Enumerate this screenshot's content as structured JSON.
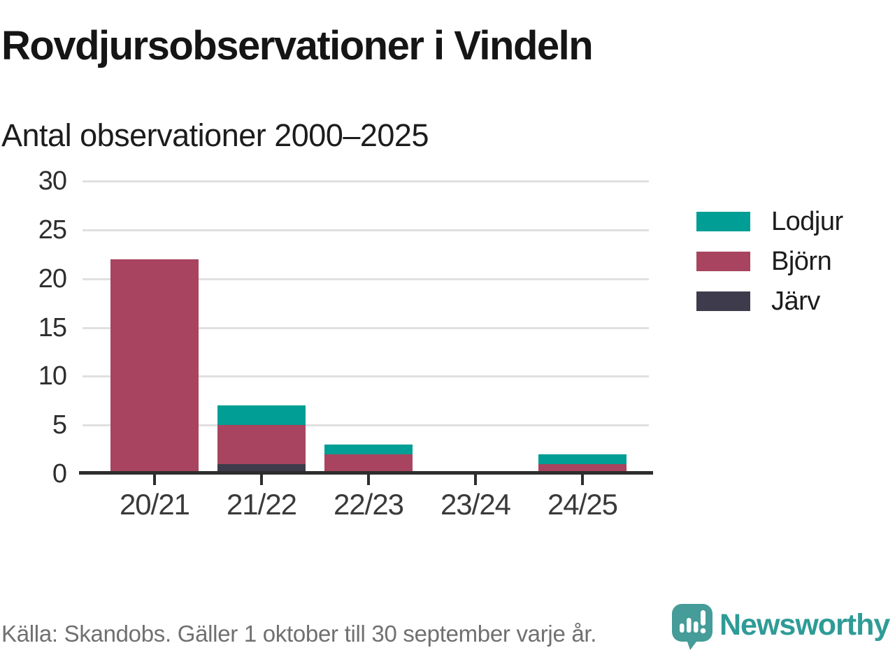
{
  "header": {
    "title": "Rovdjursobservationer i Vindeln",
    "subtitle": "Antal observationer 2000–2025"
  },
  "chart_data": {
    "type": "bar",
    "stacked": true,
    "categories": [
      "20/21",
      "21/22",
      "22/23",
      "23/24",
      "24/25"
    ],
    "series": [
      {
        "name": "Lodjur",
        "color": "#009e94",
        "values": [
          0,
          2,
          1,
          0,
          1
        ]
      },
      {
        "name": "Björn",
        "color": "#a8445f",
        "values": [
          22,
          4,
          2,
          0,
          1
        ]
      },
      {
        "name": "Järv",
        "color": "#3e3c4c",
        "values": [
          0,
          1,
          0,
          0,
          0
        ]
      }
    ],
    "stack_order_bottom_to_top": [
      "Järv",
      "Björn",
      "Lodjur"
    ],
    "totals": [
      22,
      7,
      3,
      0,
      2
    ],
    "ylim": [
      0,
      30
    ],
    "yticks": [
      0,
      5,
      10,
      15,
      20,
      25,
      30
    ],
    "grid": "horizontal",
    "legend_position": "right",
    "title": "Rovdjursobservationer i Vindeln",
    "xlabel": "",
    "ylabel": "Antal observationer"
  },
  "footer": {
    "source": "Källa: Skandobs. Gäller 1 oktober till 30 september varje år.",
    "brand": "Newsworthy",
    "logo_icon": "bar-chart-speech-bubble-icon"
  },
  "colors": {
    "teal": "#009e94",
    "berry": "#a8445f",
    "dark_slate": "#3e3c4c",
    "brand_teal": "#459c98",
    "grid": "#e0e0e0",
    "axis": "#2d2d2d",
    "muted_text": "#707070"
  }
}
